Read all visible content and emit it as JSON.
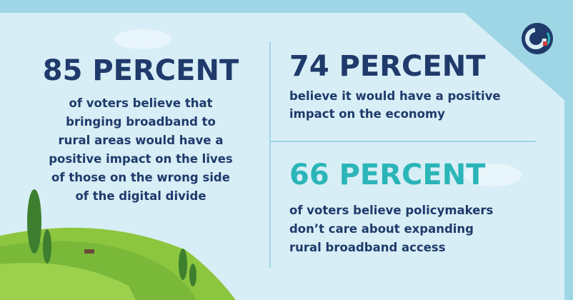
{
  "stats": [
    {
      "headline": "85 PERCENT",
      "lines": [
        "of voters believe that",
        "bringing broadband to",
        "rural areas would have a",
        "positive impact on the lives",
        "of those on the wrong side",
        "of the digital divide"
      ]
    },
    {
      "headline": "74 PERCENT",
      "lines": [
        "believe it would have a positive",
        "impact on the economy"
      ]
    },
    {
      "headline": "66 PERCENT",
      "lines": [
        "of voters believe policymakers",
        "don’t care about expanding",
        "rural broadband access"
      ]
    }
  ]
}
